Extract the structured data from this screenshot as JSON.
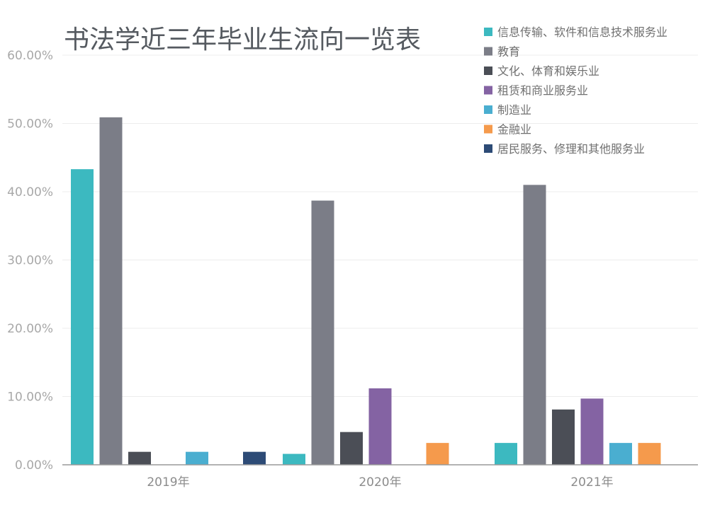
{
  "chart_data": {
    "type": "bar",
    "title": "书法学近三年毕业生流向一览表",
    "categories": [
      "2019年",
      "2020年",
      "2021年"
    ],
    "ylim": [
      0,
      60
    ],
    "yticks": [
      "0.00%",
      "10.00%",
      "20.00%",
      "30.00%",
      "40.00%",
      "50.00%",
      "60.00%"
    ],
    "grid": true,
    "legend_position": "top-right",
    "series": [
      {
        "name": "信息传输、软件和信息技术服务业",
        "color": "#3cb9c0",
        "values": [
          43.3,
          1.6,
          3.2
        ]
      },
      {
        "name": "教育",
        "color": "#7b7d87",
        "values": [
          50.9,
          38.7,
          41.0
        ]
      },
      {
        "name": "文化、体育和娱乐业",
        "color": "#4b4e56",
        "values": [
          1.9,
          4.8,
          8.1
        ]
      },
      {
        "name": "租赁和商业服务业",
        "color": "#8463a3",
        "values": [
          0,
          11.2,
          9.7
        ]
      },
      {
        "name": "制造业",
        "color": "#4aaed0",
        "values": [
          1.9,
          0,
          3.2
        ]
      },
      {
        "name": "金融业",
        "color": "#f59a4c",
        "values": [
          0,
          3.2,
          3.2
        ]
      },
      {
        "name": "居民服务、修理和其他服务业",
        "color": "#2d4b76",
        "values": [
          1.9,
          0,
          0
        ]
      }
    ]
  }
}
